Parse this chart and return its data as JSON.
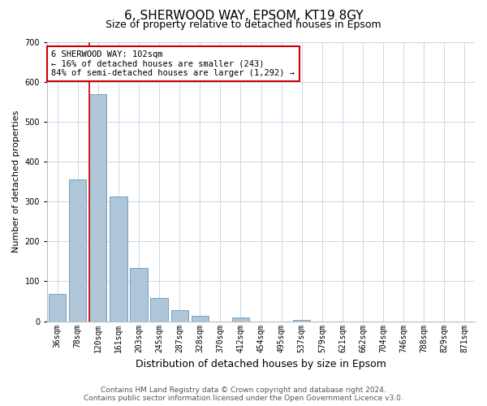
{
  "title": "6, SHERWOOD WAY, EPSOM, KT19 8GY",
  "subtitle": "Size of property relative to detached houses in Epsom",
  "xlabel": "Distribution of detached houses by size in Epsom",
  "ylabel": "Number of detached properties",
  "bar_labels": [
    "36sqm",
    "78sqm",
    "120sqm",
    "161sqm",
    "203sqm",
    "245sqm",
    "287sqm",
    "328sqm",
    "370sqm",
    "412sqm",
    "454sqm",
    "495sqm",
    "537sqm",
    "579sqm",
    "621sqm",
    "662sqm",
    "704sqm",
    "746sqm",
    "788sqm",
    "829sqm",
    "871sqm"
  ],
  "bar_values": [
    68,
    355,
    568,
    313,
    133,
    58,
    27,
    14,
    0,
    9,
    0,
    0,
    4,
    0,
    0,
    0,
    0,
    0,
    0,
    0,
    0
  ],
  "bar_color": "#aec6d8",
  "bar_edgecolor": "#6699bb",
  "ylim": [
    0,
    700
  ],
  "yticks": [
    0,
    100,
    200,
    300,
    400,
    500,
    600,
    700
  ],
  "vline_color": "#cc0000",
  "vline_pos": 1.57,
  "annotation_text": "6 SHERWOOD WAY: 102sqm\n← 16% of detached houses are smaller (243)\n84% of semi-detached houses are larger (1,292) →",
  "annotation_box_color": "#ffffff",
  "annotation_box_edgecolor": "#cc0000",
  "footer_line1": "Contains HM Land Registry data © Crown copyright and database right 2024.",
  "footer_line2": "Contains public sector information licensed under the Open Government Licence v3.0.",
  "bg_color": "#ffffff",
  "grid_color": "#c8d8e8",
  "title_fontsize": 11,
  "subtitle_fontsize": 9,
  "xlabel_fontsize": 9,
  "ylabel_fontsize": 8,
  "tick_fontsize": 7,
  "annot_fontsize": 7.5,
  "footer_fontsize": 6.5
}
